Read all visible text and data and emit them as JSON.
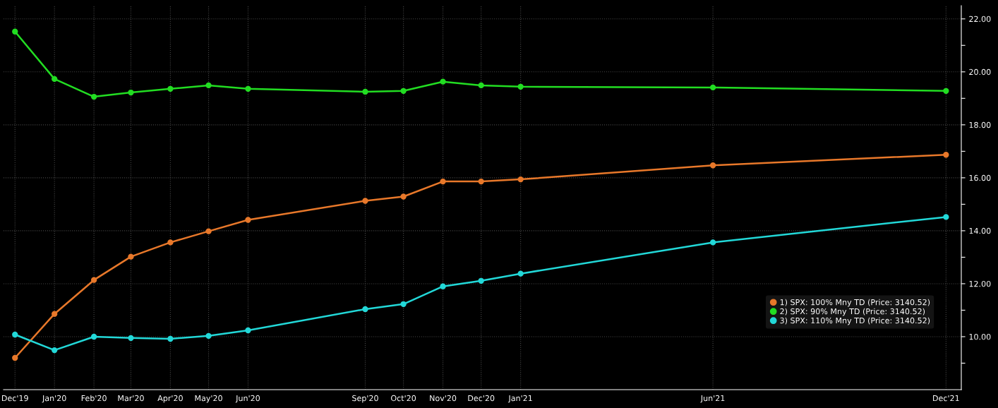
{
  "chart_data": {
    "type": "line",
    "x": [
      "2019-12",
      "2020-01",
      "2020-02",
      "2020-03",
      "2020-04",
      "2020-05",
      "2020-06",
      "2020-09",
      "2020-10",
      "2020-11",
      "2020-12",
      "2021-01",
      "2021-06",
      "2021-12"
    ],
    "series": [
      {
        "name": "1) SPX: 100% Mny TD (Price: 3140.52)",
        "color": "#e8782a",
        "values": [
          9.2,
          10.86,
          12.14,
          13.02,
          13.56,
          13.98,
          14.41,
          15.13,
          15.29,
          15.86,
          15.86,
          15.94,
          16.47,
          16.87
        ]
      },
      {
        "name": "2) SPX: 90% Mny TD (Price: 3140.52)",
        "color": "#22dd22",
        "values": [
          21.52,
          19.73,
          19.06,
          19.22,
          19.36,
          19.49,
          19.36,
          19.25,
          19.28,
          19.63,
          19.49,
          19.44,
          19.41,
          19.28
        ]
      },
      {
        "name": "3) SPX: 110% Mny TD (Price: 3140.52)",
        "color": "#22d8d8",
        "values": [
          10.08,
          9.49,
          10.0,
          9.95,
          9.92,
          10.03,
          10.24,
          11.04,
          11.23,
          11.9,
          12.11,
          12.38,
          13.56,
          14.52
        ]
      }
    ],
    "xlim": [
      "2019-11-22",
      "2021-12-13"
    ],
    "xticks": [
      {
        "value": "2019-12",
        "label": "Dec'19"
      },
      {
        "value": "2020-01",
        "label": "Jan'20"
      },
      {
        "value": "2020-02",
        "label": "Feb'20"
      },
      {
        "value": "2020-03",
        "label": "Mar'20"
      },
      {
        "value": "2020-04",
        "label": "Apr'20"
      },
      {
        "value": "2020-05",
        "label": "May'20"
      },
      {
        "value": "2020-06",
        "label": "Jun'20"
      },
      {
        "value": "2020-09",
        "label": "Sep'20"
      },
      {
        "value": "2020-10",
        "label": "Oct'20"
      },
      {
        "value": "2020-11",
        "label": "Nov'20"
      },
      {
        "value": "2020-12",
        "label": "Dec'20"
      },
      {
        "value": "2021-01",
        "label": "Jan'21"
      },
      {
        "value": "2021-06",
        "label": "Jun'21"
      },
      {
        "value": "2021-12",
        "label": "Dec'21"
      }
    ],
    "ylim": [
      8.0,
      22.5
    ],
    "yticks": [
      {
        "value": 9,
        "label": null
      },
      {
        "value": 10,
        "label": "10.00"
      },
      {
        "value": 11,
        "label": null
      },
      {
        "value": 12,
        "label": "12.00"
      },
      {
        "value": 13,
        "label": null
      },
      {
        "value": 14,
        "label": "14.00"
      },
      {
        "value": 15,
        "label": null
      },
      {
        "value": 16,
        "label": "16.00"
      },
      {
        "value": 17,
        "label": null
      },
      {
        "value": 18,
        "label": "18.00"
      },
      {
        "value": 19,
        "label": null
      },
      {
        "value": 20,
        "label": "20.00"
      },
      {
        "value": 21,
        "label": null
      },
      {
        "value": 22,
        "label": "22.00"
      }
    ],
    "grid": true,
    "legend": "bottom right",
    "marker": "circle",
    "line_style": "solid"
  }
}
